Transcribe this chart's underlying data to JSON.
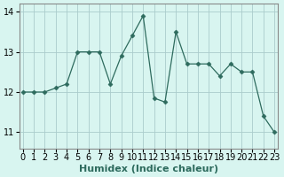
{
  "x": [
    0,
    1,
    2,
    3,
    4,
    5,
    6,
    7,
    8,
    9,
    10,
    11,
    12,
    13,
    14,
    15,
    16,
    17,
    18,
    19,
    20,
    21,
    22,
    23
  ],
  "y": [
    12.0,
    12.0,
    12.0,
    12.1,
    12.2,
    13.0,
    13.0,
    13.0,
    12.2,
    12.9,
    13.4,
    13.9,
    11.85,
    11.75,
    13.5,
    12.7,
    12.7,
    12.7,
    12.4,
    12.7,
    12.5,
    12.5,
    11.4,
    11.0
  ],
  "line_color": "#2e6b5e",
  "marker": "D",
  "marker_size": 2.5,
  "bg_color": "#d8f5f0",
  "grid_color": "#aacccc",
  "spine_color": "#888888",
  "xlabel": "Humidex (Indice chaleur)",
  "xlabel_fontsize": 8,
  "tick_fontsize": 7,
  "ylim": [
    10.6,
    14.2
  ],
  "yticks": [
    11,
    12,
    13,
    14
  ],
  "xticks": [
    0,
    1,
    2,
    3,
    4,
    5,
    6,
    7,
    8,
    9,
    10,
    11,
    12,
    13,
    14,
    15,
    16,
    17,
    18,
    19,
    20,
    21,
    22,
    23
  ]
}
